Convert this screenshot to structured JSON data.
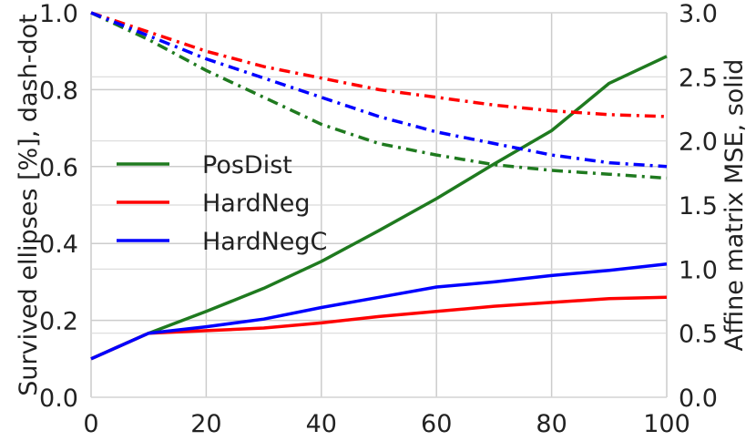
{
  "chart_data": {
    "type": "line",
    "xlabel": "",
    "ylabel_left": "Survived ellipses [%], dash-dot",
    "ylabel_right": "Affine matrix MSE, solid",
    "xlim": [
      0,
      100
    ],
    "ylim_left": [
      0.0,
      1.0
    ],
    "ylim_right": [
      0.0,
      3.0
    ],
    "xticks": [
      "0",
      "20",
      "40",
      "60",
      "80",
      "100"
    ],
    "yticks_left": [
      "0.0",
      "0.2",
      "0.4",
      "0.6",
      "0.8",
      "1.0"
    ],
    "yticks_right": [
      "0.0",
      "0.5",
      "1.0",
      "1.5",
      "2.0",
      "2.5",
      "3.0"
    ],
    "grid": true,
    "legend_position": "middle-left",
    "x": [
      0,
      10,
      20,
      30,
      40,
      50,
      60,
      70,
      80,
      90,
      100
    ],
    "series": [
      {
        "name": "PosDist",
        "color": "#1f7a1f",
        "mse": [
          0.3,
          0.5,
          0.67,
          0.85,
          1.06,
          1.3,
          1.55,
          1.82,
          2.08,
          2.45,
          2.66
        ],
        "survived": [
          1.0,
          0.93,
          0.85,
          0.78,
          0.71,
          0.66,
          0.63,
          0.605,
          0.59,
          0.58,
          0.57
        ]
      },
      {
        "name": "HardNeg",
        "color": "#ff0000",
        "mse": [
          0.3,
          0.5,
          0.52,
          0.54,
          0.58,
          0.63,
          0.67,
          0.71,
          0.74,
          0.77,
          0.78
        ],
        "survived": [
          1.0,
          0.95,
          0.9,
          0.86,
          0.83,
          0.8,
          0.78,
          0.76,
          0.745,
          0.735,
          0.73
        ]
      },
      {
        "name": "HardNegC",
        "color": "#0000ff",
        "mse": [
          0.3,
          0.5,
          0.55,
          0.61,
          0.7,
          0.78,
          0.86,
          0.9,
          0.95,
          0.99,
          1.04
        ],
        "survived": [
          1.0,
          0.94,
          0.88,
          0.83,
          0.78,
          0.73,
          0.69,
          0.66,
          0.63,
          0.61,
          0.6
        ]
      }
    ]
  }
}
